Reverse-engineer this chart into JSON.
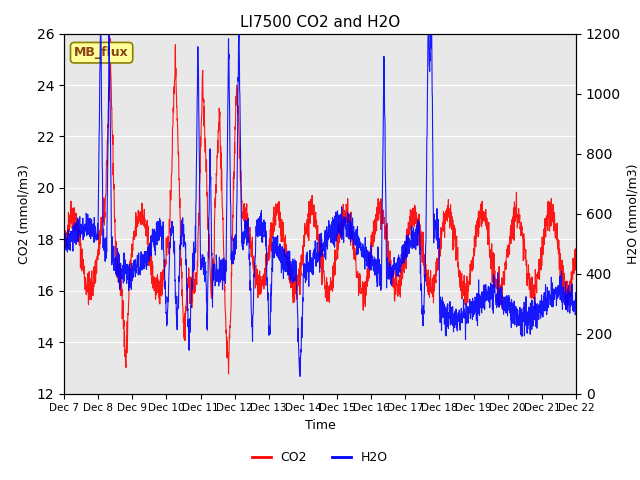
{
  "title": "LI7500 CO2 and H2O",
  "xlabel": "Time",
  "ylabel_left": "CO2 (mmol/m3)",
  "ylabel_right": "H2O (mmol/m3)",
  "ylim_left": [
    12,
    26
  ],
  "ylim_right": [
    0,
    1200
  ],
  "yticks_left": [
    12,
    14,
    16,
    18,
    20,
    22,
    24,
    26
  ],
  "yticks_right": [
    0,
    200,
    400,
    600,
    800,
    1000,
    1200
  ],
  "x_tick_labels": [
    "Dec 7",
    "Dec 8",
    "Dec 9",
    "Dec 10",
    "Dec 11",
    "Dec 12",
    "Dec 13",
    "Dec 14",
    "Dec 15",
    "Dec 16",
    "Dec 17",
    "Dec 18",
    "Dec 19",
    "Dec 20",
    "Dec 21",
    "Dec 22"
  ],
  "annotation_text": "MB_flux",
  "annotation_color": "#8B4513",
  "annotation_bg": "#FFFF99",
  "background_color": "#E8E8E8",
  "co2_color": "#FF0000",
  "h2o_color": "#0000FF",
  "legend_co2": "CO2",
  "legend_h2o": "H2O",
  "seed": 42
}
